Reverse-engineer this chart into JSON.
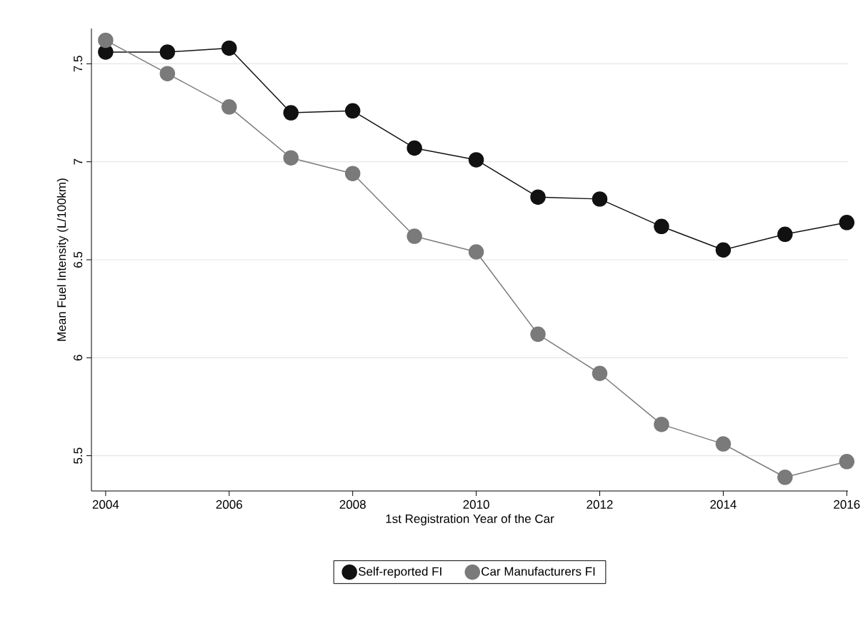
{
  "chart_data": {
    "type": "line",
    "xlabel": "1st Registration Year of the Car",
    "ylabel": "Mean Fuel Intensity (L/100km)",
    "x": [
      2004,
      2005,
      2006,
      2007,
      2008,
      2009,
      2010,
      2011,
      2012,
      2013,
      2014,
      2015,
      2016
    ],
    "series": [
      {
        "name": "Self-reported FI",
        "color": "#111111",
        "values": [
          7.56,
          7.56,
          7.58,
          7.25,
          7.26,
          7.07,
          7.01,
          6.82,
          6.81,
          6.67,
          6.55,
          6.63,
          6.69
        ]
      },
      {
        "name": "Car Manufacturers FI",
        "color": "#7a7a7a",
        "values": [
          7.62,
          7.45,
          7.28,
          7.02,
          6.94,
          6.62,
          6.54,
          6.12,
          5.92,
          5.66,
          5.56,
          5.39,
          5.47
        ]
      }
    ],
    "xlim": [
      2003.77,
      2016.02
    ],
    "ylim": [
      5.32,
      7.68
    ],
    "xticks": [
      2004,
      2006,
      2008,
      2010,
      2012,
      2014,
      2016
    ],
    "yticks": [
      5.5,
      6,
      6.5,
      7,
      7.5
    ],
    "grid": "y",
    "legend": "bottom",
    "marker": "circle",
    "line_style": "solid"
  }
}
